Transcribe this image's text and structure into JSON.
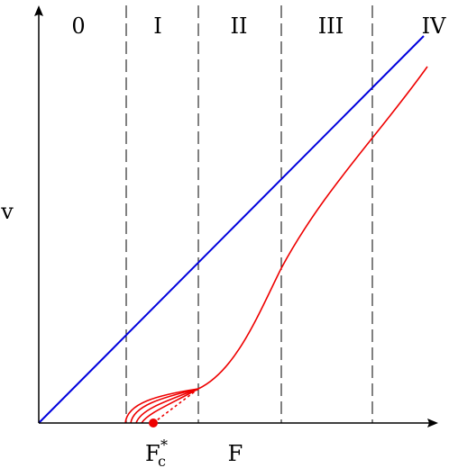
{
  "regions": [
    "0",
    "I",
    "II",
    "III",
    "IV"
  ],
  "axes": {
    "y_label": "v",
    "x_label": "F"
  },
  "critical_force": {
    "main": "F",
    "sub": "c",
    "sup": "*"
  },
  "colors": {
    "linear_line": "#0000dd",
    "response_curve": "#ee0000",
    "axes": "#000000"
  }
}
